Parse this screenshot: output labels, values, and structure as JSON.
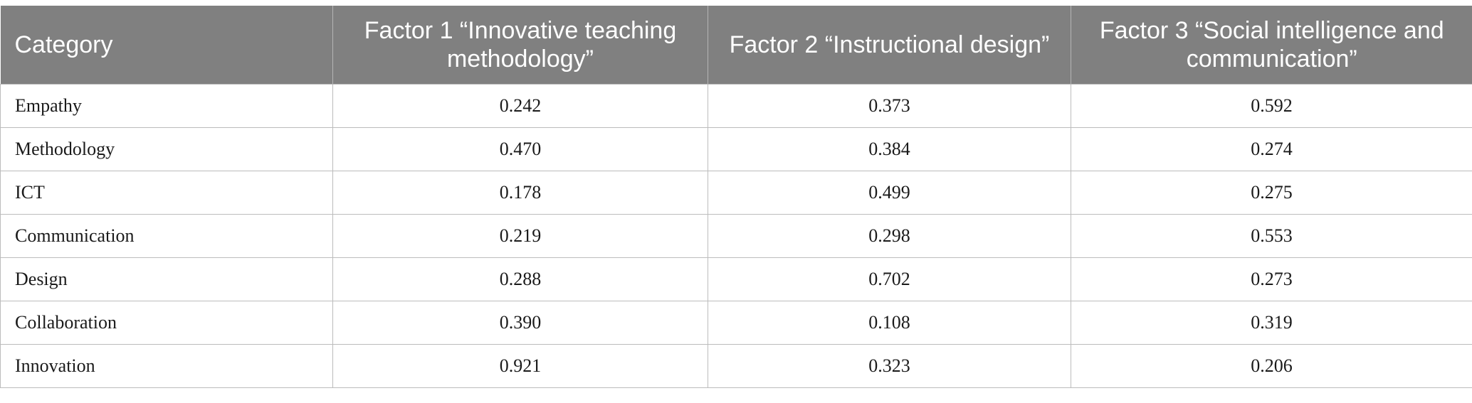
{
  "table": {
    "headers": [
      "Category",
      "Factor 1 “Innovative teaching methodology”",
      "Factor 2 “Instructional design”",
      "Factor 3 “Social intelligence and communication”"
    ],
    "rows": [
      [
        "Empathy",
        "0.242",
        "0.373",
        "0.592"
      ],
      [
        "Methodology",
        "0.470",
        "0.384",
        "0.274"
      ],
      [
        "ICT",
        "0.178",
        "0.499",
        "0.275"
      ],
      [
        "Communication",
        "0.219",
        "0.298",
        "0.553"
      ],
      [
        "Design",
        "0.288",
        "0.702",
        "0.273"
      ],
      [
        "Collaboration",
        "0.390",
        "0.108",
        "0.319"
      ],
      [
        "Innovation",
        "0.921",
        "0.323",
        "0.206"
      ]
    ]
  },
  "colors": {
    "header_bg": "#808080",
    "header_text": "#ffffff",
    "border": "#bcbcbc"
  }
}
